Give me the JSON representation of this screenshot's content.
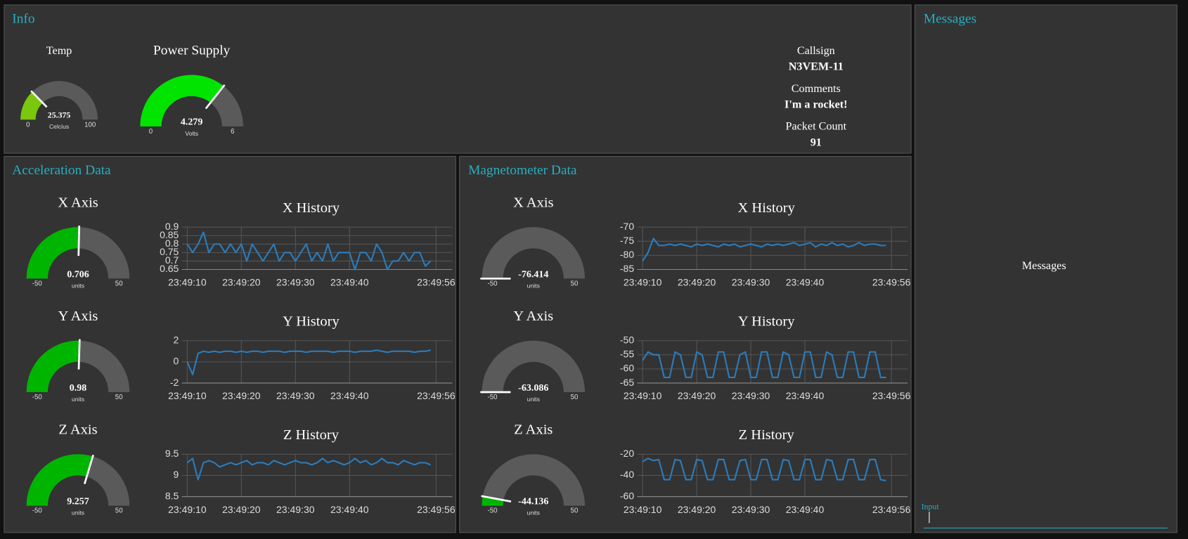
{
  "info": {
    "title": "Info",
    "gauges": [
      {
        "title": "Temp",
        "value": 25.375,
        "min": 0,
        "max": 100,
        "unit": "Celcius",
        "color": "#7ac70c"
      },
      {
        "title": "Power Supply",
        "value": 4.279,
        "min": 0,
        "max": 6,
        "unit": "Volts",
        "color": "#00e400"
      }
    ],
    "fields": [
      {
        "label": "Callsign",
        "value": "N3VEM-11"
      },
      {
        "label": "Comments",
        "value": "I'm a rocket!"
      },
      {
        "label": "Packet Count",
        "value": 91
      }
    ]
  },
  "acceleration": {
    "title": "Acceleration Data",
    "gauges": [
      {
        "title": "X Axis",
        "value": 0.706,
        "min": -50,
        "max": 50,
        "unit": "units",
        "color": "#00b500"
      },
      {
        "title": "Y Axis",
        "value": 0.98,
        "min": -50,
        "max": 50,
        "unit": "units",
        "color": "#00b500"
      },
      {
        "title": "Z Axis",
        "value": 9.257,
        "min": -50,
        "max": 50,
        "unit": "units",
        "color": "#00b500"
      }
    ],
    "charts": [
      {
        "type": "line",
        "title": "X History",
        "color": "#2b7bba",
        "grid": true,
        "x": [
          "23:49:10",
          "23:49:11",
          "23:49:12",
          "23:49:13",
          "23:49:14",
          "23:49:15",
          "23:49:16",
          "23:49:17",
          "23:49:18",
          "23:49:19",
          "23:49:20",
          "23:49:21",
          "23:49:22",
          "23:49:23",
          "23:49:24",
          "23:49:25",
          "23:49:26",
          "23:49:27",
          "23:49:28",
          "23:49:29",
          "23:49:30",
          "23:49:31",
          "23:49:32",
          "23:49:33",
          "23:49:34",
          "23:49:35",
          "23:49:36",
          "23:49:37",
          "23:49:38",
          "23:49:39",
          "23:49:40",
          "23:49:41",
          "23:49:42",
          "23:49:43",
          "23:49:44",
          "23:49:45",
          "23:49:46",
          "23:49:47",
          "23:49:48",
          "23:49:49",
          "23:49:50",
          "23:49:51",
          "23:49:52",
          "23:49:53",
          "23:49:54",
          "23:49:55"
        ],
        "values": [
          0.8,
          0.75,
          0.8,
          0.87,
          0.75,
          0.8,
          0.8,
          0.75,
          0.8,
          0.75,
          0.8,
          0.7,
          0.8,
          0.75,
          0.7,
          0.75,
          0.8,
          0.7,
          0.75,
          0.75,
          0.7,
          0.75,
          0.8,
          0.7,
          0.75,
          0.7,
          0.8,
          0.7,
          0.75,
          0.75,
          0.75,
          0.65,
          0.75,
          0.75,
          0.7,
          0.8,
          0.75,
          0.65,
          0.7,
          0.7,
          0.75,
          0.7,
          0.75,
          0.75,
          0.67,
          0.7
        ],
        "xlim": [
          "23:49:09",
          "23:49:59"
        ],
        "xticks": [
          "23:49:10",
          "23:49:20",
          "23:49:30",
          "23:49:40",
          "23:49:56"
        ],
        "ylim": [
          0.65,
          0.9
        ],
        "yticks": [
          0.65,
          0.7,
          0.75,
          0.8,
          0.85,
          0.9
        ]
      },
      {
        "type": "line",
        "title": "Y History",
        "color": "#2b7bba",
        "grid": true,
        "x": [
          "23:49:10",
          "23:49:11",
          "23:49:12",
          "23:49:13",
          "23:49:14",
          "23:49:15",
          "23:49:16",
          "23:49:17",
          "23:49:18",
          "23:49:19",
          "23:49:20",
          "23:49:21",
          "23:49:22",
          "23:49:23",
          "23:49:24",
          "23:49:25",
          "23:49:26",
          "23:49:27",
          "23:49:28",
          "23:49:29",
          "23:49:30",
          "23:49:31",
          "23:49:32",
          "23:49:33",
          "23:49:34",
          "23:49:35",
          "23:49:36",
          "23:49:37",
          "23:49:38",
          "23:49:39",
          "23:49:40",
          "23:49:41",
          "23:49:42",
          "23:49:43",
          "23:49:44",
          "23:49:45",
          "23:49:46",
          "23:49:47",
          "23:49:48",
          "23:49:49",
          "23:49:50",
          "23:49:51",
          "23:49:52",
          "23:49:53",
          "23:49:54",
          "23:49:55"
        ],
        "values": [
          0,
          -1.2,
          0.8,
          1,
          0.9,
          1,
          0.9,
          1,
          1,
          0.9,
          1,
          0.9,
          1,
          1,
          0.9,
          1,
          1,
          1,
          0.9,
          1,
          1,
          1,
          0.9,
          1,
          1,
          1,
          1,
          0.9,
          1,
          1,
          1,
          0.9,
          1,
          1,
          1,
          1.1,
          1,
          0.9,
          1,
          1,
          1,
          1,
          0.9,
          1,
          1,
          1.1
        ],
        "xlim": [
          "23:49:09",
          "23:49:59"
        ],
        "xticks": [
          "23:49:10",
          "23:49:20",
          "23:49:30",
          "23:49:40",
          "23:49:56"
        ],
        "ylim": [
          -2,
          2
        ],
        "yticks": [
          -2,
          0,
          2
        ]
      },
      {
        "type": "line",
        "title": "Z History",
        "color": "#2b7bba",
        "grid": true,
        "x": [
          "23:49:10",
          "23:49:11",
          "23:49:12",
          "23:49:13",
          "23:49:14",
          "23:49:15",
          "23:49:16",
          "23:49:17",
          "23:49:18",
          "23:49:19",
          "23:49:20",
          "23:49:21",
          "23:49:22",
          "23:49:23",
          "23:49:24",
          "23:49:25",
          "23:49:26",
          "23:49:27",
          "23:49:28",
          "23:49:29",
          "23:49:30",
          "23:49:31",
          "23:49:32",
          "23:49:33",
          "23:49:34",
          "23:49:35",
          "23:49:36",
          "23:49:37",
          "23:49:38",
          "23:49:39",
          "23:49:40",
          "23:49:41",
          "23:49:42",
          "23:49:43",
          "23:49:44",
          "23:49:45",
          "23:49:46",
          "23:49:47",
          "23:49:48",
          "23:49:49",
          "23:49:50",
          "23:49:51",
          "23:49:52",
          "23:49:53",
          "23:49:54",
          "23:49:55"
        ],
        "values": [
          9.3,
          9.4,
          8.9,
          9.3,
          9.35,
          9.3,
          9.2,
          9.25,
          9.3,
          9.25,
          9.3,
          9.35,
          9.25,
          9.3,
          9.3,
          9.25,
          9.35,
          9.3,
          9.25,
          9.3,
          9.35,
          9.3,
          9.3,
          9.25,
          9.3,
          9.4,
          9.3,
          9.35,
          9.3,
          9.25,
          9.3,
          9.4,
          9.3,
          9.35,
          9.25,
          9.3,
          9.4,
          9.3,
          9.3,
          9.25,
          9.35,
          9.3,
          9.25,
          9.3,
          9.3,
          9.25
        ],
        "xlim": [
          "23:49:09",
          "23:49:59"
        ],
        "xticks": [
          "23:49:10",
          "23:49:20",
          "23:49:30",
          "23:49:40",
          "23:49:56"
        ],
        "ylim": [
          8.5,
          9.5
        ],
        "yticks": [
          8.5,
          9,
          9.5
        ]
      }
    ]
  },
  "magnetometer": {
    "title": "Magnetometer Data",
    "gauges": [
      {
        "title": "X Axis",
        "value": -76.414,
        "min": -50,
        "max": 50,
        "unit": "units",
        "color": "#00b500"
      },
      {
        "title": "Y Axis",
        "value": -63.086,
        "min": -50,
        "max": 50,
        "unit": "units",
        "color": "#00b500"
      },
      {
        "title": "Z Axis",
        "value": -44.136,
        "min": -50,
        "max": 50,
        "unit": "units",
        "color": "#00b500"
      }
    ],
    "charts": [
      {
        "type": "line",
        "title": "X History",
        "color": "#2b7bba",
        "grid": true,
        "x": [
          "23:49:10",
          "23:49:11",
          "23:49:12",
          "23:49:13",
          "23:49:14",
          "23:49:15",
          "23:49:16",
          "23:49:17",
          "23:49:18",
          "23:49:19",
          "23:49:20",
          "23:49:21",
          "23:49:22",
          "23:49:23",
          "23:49:24",
          "23:49:25",
          "23:49:26",
          "23:49:27",
          "23:49:28",
          "23:49:29",
          "23:49:30",
          "23:49:31",
          "23:49:32",
          "23:49:33",
          "23:49:34",
          "23:49:35",
          "23:49:36",
          "23:49:37",
          "23:49:38",
          "23:49:39",
          "23:49:40",
          "23:49:41",
          "23:49:42",
          "23:49:43",
          "23:49:44",
          "23:49:45",
          "23:49:46",
          "23:49:47",
          "23:49:48",
          "23:49:49",
          "23:49:50",
          "23:49:51",
          "23:49:52",
          "23:49:53",
          "23:49:54",
          "23:49:55"
        ],
        "values": [
          -82,
          -79,
          -74,
          -76.5,
          -76.5,
          -76,
          -76.5,
          -76,
          -76.5,
          -77,
          -76,
          -76.5,
          -76,
          -76.5,
          -77,
          -76,
          -76.5,
          -76,
          -77,
          -76.5,
          -76,
          -76.5,
          -77,
          -76,
          -76.5,
          -76,
          -76.5,
          -76,
          -75.5,
          -76.5,
          -76,
          -75.5,
          -77,
          -76,
          -76.5,
          -75.5,
          -76.5,
          -76,
          -77,
          -76.5,
          -75.5,
          -76.5,
          -76,
          -76,
          -76.5,
          -76.5
        ],
        "xlim": [
          "23:49:09",
          "23:49:59"
        ],
        "xticks": [
          "23:49:10",
          "23:49:20",
          "23:49:30",
          "23:49:40",
          "23:49:56"
        ],
        "ylim": [
          -85,
          -70
        ],
        "yticks": [
          -85,
          -80,
          -75,
          -70
        ]
      },
      {
        "type": "line",
        "title": "Y History",
        "color": "#2b7bba",
        "grid": true,
        "x": [
          "23:49:10",
          "23:49:11",
          "23:49:12",
          "23:49:13",
          "23:49:14",
          "23:49:15",
          "23:49:16",
          "23:49:17",
          "23:49:18",
          "23:49:19",
          "23:49:20",
          "23:49:21",
          "23:49:22",
          "23:49:23",
          "23:49:24",
          "23:49:25",
          "23:49:26",
          "23:49:27",
          "23:49:28",
          "23:49:29",
          "23:49:30",
          "23:49:31",
          "23:49:32",
          "23:49:33",
          "23:49:34",
          "23:49:35",
          "23:49:36",
          "23:49:37",
          "23:49:38",
          "23:49:39",
          "23:49:40",
          "23:49:41",
          "23:49:42",
          "23:49:43",
          "23:49:44",
          "23:49:45",
          "23:49:46",
          "23:49:47",
          "23:49:48",
          "23:49:49",
          "23:49:50",
          "23:49:51",
          "23:49:52",
          "23:49:53",
          "23:49:54",
          "23:49:55"
        ],
        "values": [
          -57,
          -54,
          -55,
          -55,
          -63,
          -63,
          -54,
          -55,
          -63,
          -63,
          -54,
          -55,
          -63,
          -63,
          -54,
          -54,
          -63,
          -63,
          -55,
          -54,
          -63,
          -63,
          -54,
          -54,
          -63,
          -63,
          -54,
          -55,
          -63,
          -63,
          -54,
          -54,
          -63,
          -63,
          -54,
          -55,
          -63,
          -63,
          -54,
          -54,
          -63,
          -63,
          -54,
          -54,
          -63,
          -63
        ],
        "xlim": [
          "23:49:09",
          "23:49:59"
        ],
        "xticks": [
          "23:49:10",
          "23:49:20",
          "23:49:30",
          "23:49:40",
          "23:49:56"
        ],
        "ylim": [
          -65,
          -50
        ],
        "yticks": [
          -65,
          -60,
          -55,
          -50
        ]
      },
      {
        "type": "line",
        "title": "Z History",
        "color": "#2b7bba",
        "grid": true,
        "x": [
          "23:49:10",
          "23:49:11",
          "23:49:12",
          "23:49:13",
          "23:49:14",
          "23:49:15",
          "23:49:16",
          "23:49:17",
          "23:49:18",
          "23:49:19",
          "23:49:20",
          "23:49:21",
          "23:49:22",
          "23:49:23",
          "23:49:24",
          "23:49:25",
          "23:49:26",
          "23:49:27",
          "23:49:28",
          "23:49:29",
          "23:49:30",
          "23:49:31",
          "23:49:32",
          "23:49:33",
          "23:49:34",
          "23:49:35",
          "23:49:36",
          "23:49:37",
          "23:49:38",
          "23:49:39",
          "23:49:40",
          "23:49:41",
          "23:49:42",
          "23:49:43",
          "23:49:44",
          "23:49:45",
          "23:49:46",
          "23:49:47",
          "23:49:48",
          "23:49:49",
          "23:49:50",
          "23:49:51",
          "23:49:52",
          "23:49:53",
          "23:49:54",
          "23:49:55"
        ],
        "values": [
          -27,
          -24,
          -26,
          -25,
          -44,
          -44,
          -25,
          -26,
          -44,
          -44,
          -25,
          -26,
          -44,
          -44,
          -25,
          -25,
          -44,
          -44,
          -26,
          -25,
          -44,
          -44,
          -25,
          -25,
          -44,
          -44,
          -25,
          -26,
          -44,
          -44,
          -25,
          -25,
          -44,
          -44,
          -25,
          -26,
          -44,
          -44,
          -25,
          -25,
          -44,
          -44,
          -25,
          -25,
          -44,
          -45
        ],
        "xlim": [
          "23:49:09",
          "23:49:59"
        ],
        "xticks": [
          "23:49:10",
          "23:49:20",
          "23:49:30",
          "23:49:40",
          "23:49:56"
        ],
        "ylim": [
          -60,
          -20
        ],
        "yticks": [
          -60,
          -40,
          -20
        ]
      }
    ]
  },
  "messages": {
    "title": "Messages",
    "body": "Messages",
    "input_label": "Input"
  }
}
